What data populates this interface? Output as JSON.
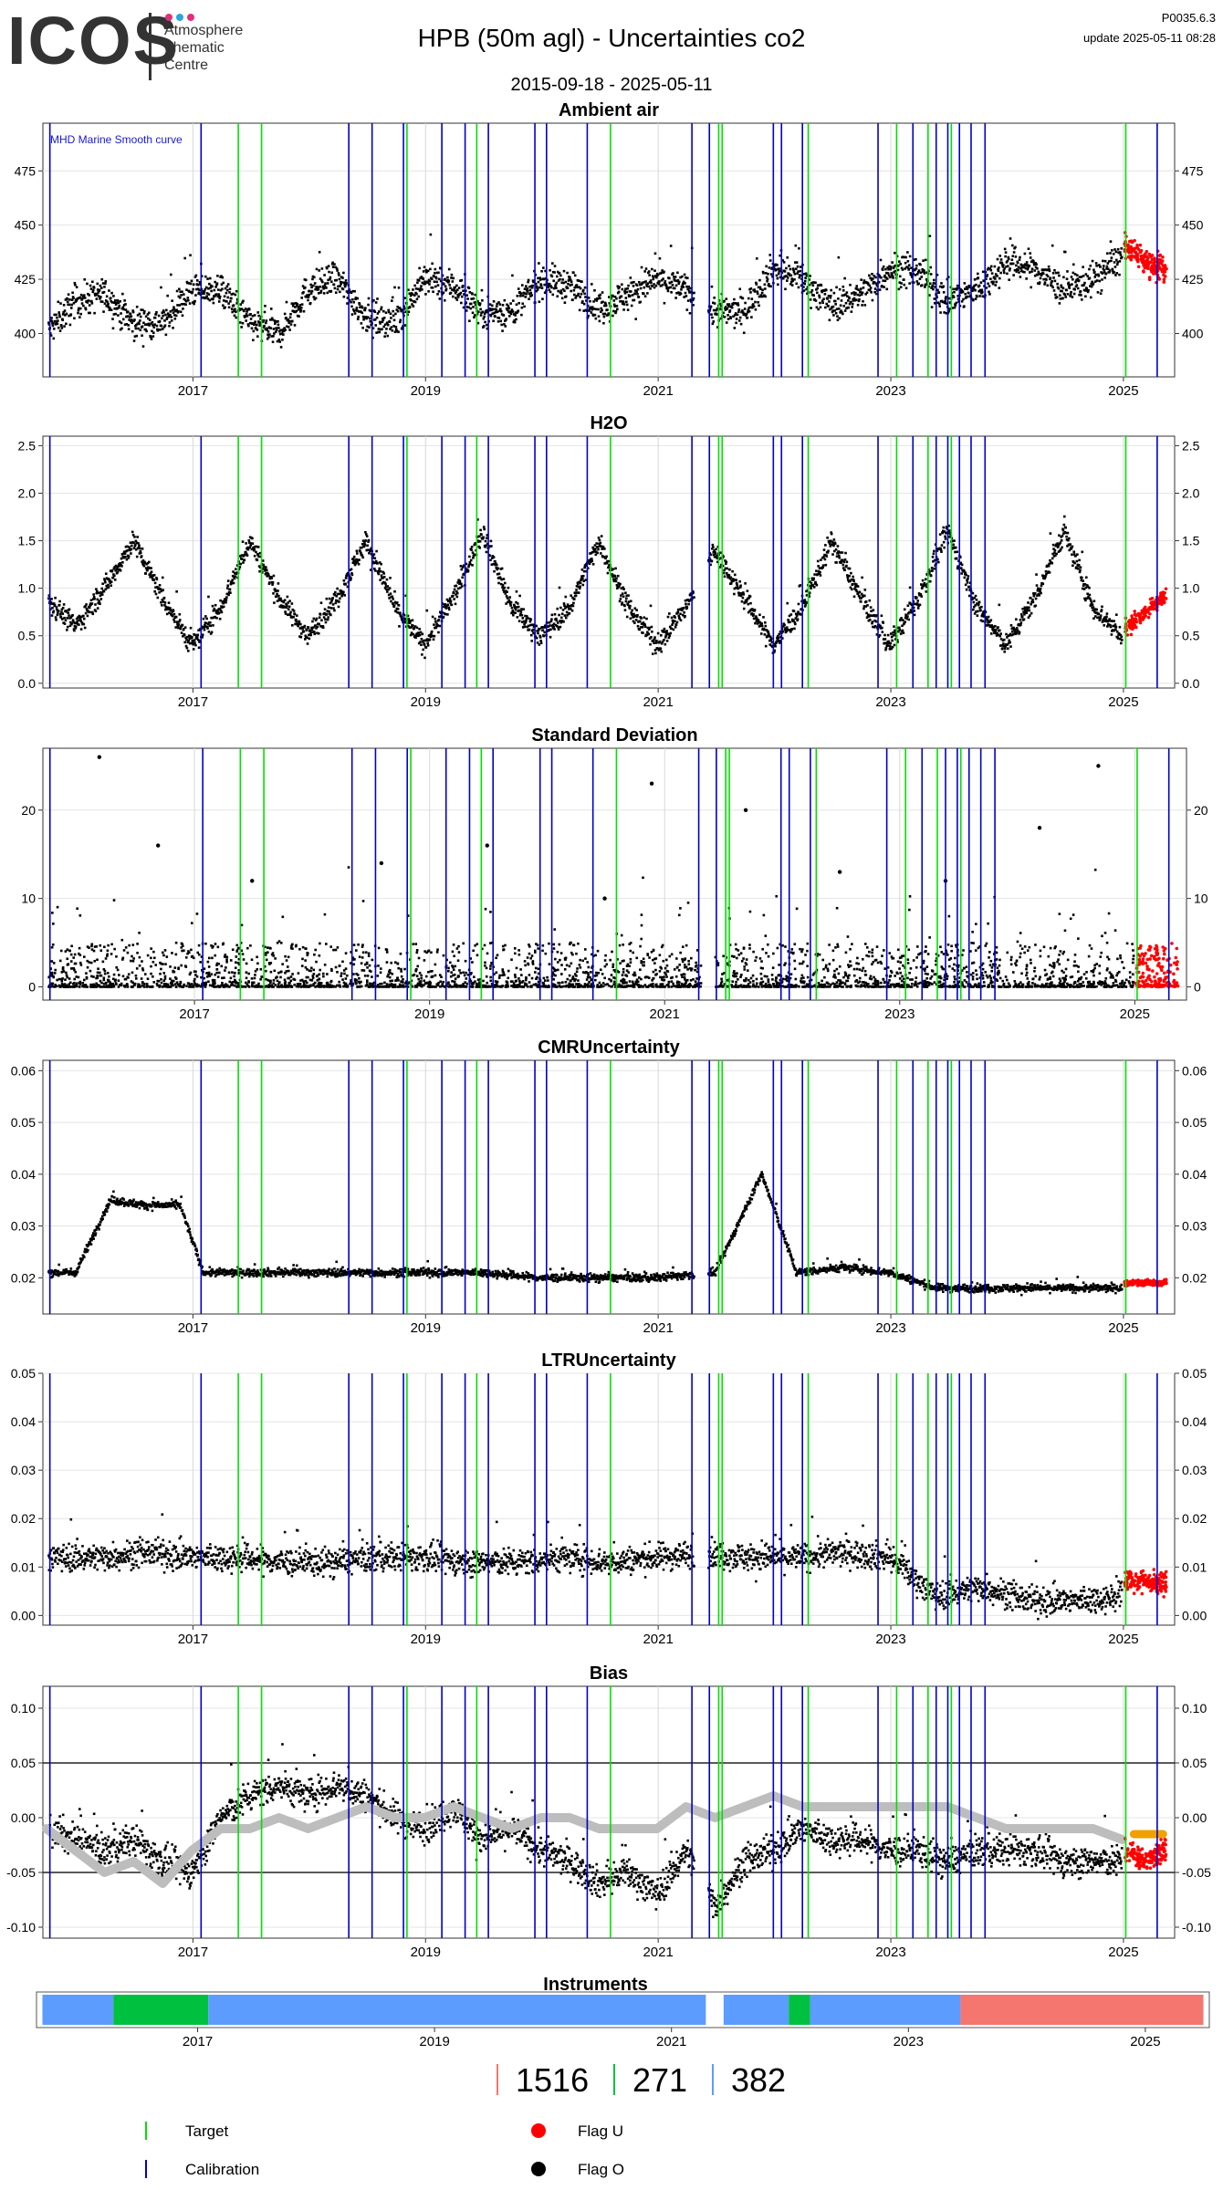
{
  "header": {
    "logo_text": "ICOS",
    "logo_sub": [
      "Atmosphere",
      "Thematic",
      "Centre"
    ],
    "title": "HPB  (50m agl) - Uncertainties co2",
    "date_range": "2015-09-18 - 2025-05-11",
    "version": "P0035.6.3",
    "update": "update  2025-05-11 08:28"
  },
  "colors": {
    "target": "#00e000",
    "calibration": "#0000c8",
    "flag_u": "#ff0000",
    "flag_o": "#000000",
    "smooth": "#bdbdbd",
    "bias_orange": "#f0a000",
    "instrument_blue": "#5c9cff",
    "instrument_green": "#00c040",
    "instrument_red": "#f4766e"
  },
  "chart_data": [
    {
      "type": "scatter",
      "title": "Ambient air",
      "annotation": "MHD Marine Smooth curve",
      "yticks": [
        400,
        425,
        450,
        475
      ],
      "ylim": [
        380,
        497
      ],
      "xticks": [
        "2017",
        "2019",
        "2021",
        "2023",
        "2025"
      ],
      "series": [
        {
          "name": "Flag O",
          "x": [
            2015.75,
            2016.0,
            2016.25,
            2016.5,
            2016.75,
            2017.0,
            2017.25,
            2017.5,
            2017.75,
            2018.0,
            2018.25,
            2018.5,
            2018.75,
            2019.0,
            2019.25,
            2019.5,
            2019.75,
            2020.0,
            2020.25,
            2020.5,
            2020.75,
            2021.0,
            2021.25,
            2021.5,
            2021.75,
            2022.0,
            2022.25,
            2022.5,
            2022.75,
            2023.0,
            2023.25,
            2023.5,
            2023.75,
            2024.0,
            2024.25,
            2024.5,
            2024.75,
            2025.0
          ],
          "y": [
            400,
            415,
            418,
            405,
            405,
            420,
            420,
            405,
            400,
            420,
            425,
            408,
            405,
            425,
            422,
            410,
            410,
            425,
            422,
            412,
            418,
            425,
            420,
            410,
            410,
            430,
            425,
            413,
            418,
            430,
            428,
            415,
            420,
            433,
            430,
            420,
            425,
            436
          ]
        },
        {
          "name": "Flag U",
          "x": [
            2025.0,
            2025.1,
            2025.2,
            2025.3
          ],
          "y": [
            440,
            438,
            433,
            430
          ]
        }
      ]
    },
    {
      "type": "scatter",
      "title": "H2O",
      "yticks": [
        0.0,
        0.5,
        1.0,
        1.5,
        2.0,
        2.5
      ],
      "ylim": [
        -0.05,
        2.6
      ],
      "xticks": [
        "2017",
        "2019",
        "2021",
        "2023",
        "2025"
      ],
      "series": [
        {
          "name": "Flag O",
          "x": [
            2015.75,
            2016.0,
            2016.25,
            2016.5,
            2016.75,
            2017.0,
            2017.25,
            2017.5,
            2017.75,
            2018.0,
            2018.25,
            2018.5,
            2018.75,
            2019.0,
            2019.25,
            2019.5,
            2019.75,
            2020.0,
            2020.25,
            2020.5,
            2020.75,
            2021.0,
            2021.25,
            2021.5,
            2021.75,
            2022.0,
            2022.25,
            2022.5,
            2022.75,
            2023.0,
            2023.25,
            2023.5,
            2023.75,
            2024.0,
            2024.25,
            2024.5,
            2024.75,
            2025.0
          ],
          "y": [
            0.9,
            0.6,
            1.0,
            1.5,
            0.9,
            0.4,
            0.8,
            1.5,
            0.9,
            0.5,
            0.9,
            1.5,
            0.8,
            0.4,
            0.9,
            1.6,
            0.8,
            0.5,
            0.8,
            1.5,
            0.8,
            0.4,
            0.8,
            1.4,
            0.9,
            0.4,
            0.8,
            1.5,
            0.9,
            0.4,
            0.9,
            1.6,
            0.8,
            0.4,
            0.9,
            1.6,
            0.8,
            0.5
          ]
        },
        {
          "name": "Flag U",
          "x": [
            2025.05,
            2025.15,
            2025.25,
            2025.35
          ],
          "y": [
            0.6,
            0.7,
            0.8,
            0.9
          ]
        }
      ]
    },
    {
      "type": "scatter",
      "title": "Standard Deviation",
      "yticks": [
        0,
        10,
        20
      ],
      "ylim": [
        -1.5,
        27
      ],
      "xticks": [
        "2017",
        "2019",
        "2021",
        "2023",
        "2025"
      ],
      "series": [
        {
          "name": "Flag O",
          "x": [
            2016.2,
            2016.7,
            2017.5,
            2018.6,
            2019.5,
            2020.5,
            2020.9,
            2021.7,
            2022.5,
            2023.4,
            2024.2,
            2024.7
          ],
          "y": [
            26,
            16,
            12,
            14,
            16,
            10,
            23,
            20,
            13,
            12,
            18,
            25
          ]
        },
        {
          "name": "Flag U",
          "x": [
            2025.1,
            2025.2
          ],
          "y": [
            3,
            5
          ]
        }
      ]
    },
    {
      "type": "scatter",
      "title": "CMRUncertainty",
      "yticks": [
        0.02,
        0.03,
        0.04,
        0.05,
        0.06
      ],
      "ylim": [
        0.013,
        0.062
      ],
      "xticks": [
        "2017",
        "2019",
        "2021",
        "2023",
        "2025"
      ],
      "series": [
        {
          "name": "Flag O",
          "x": [
            2015.8,
            2016.0,
            2016.3,
            2016.6,
            2016.9,
            2017.1,
            2017.5,
            2018.0,
            2018.5,
            2019.0,
            2019.5,
            2020.0,
            2020.5,
            2021.0,
            2021.5,
            2021.9,
            2022.2,
            2022.6,
            2023.0,
            2023.4,
            2023.8,
            2024.3,
            2024.8,
            2025.0
          ],
          "y": [
            0.021,
            0.021,
            0.035,
            0.034,
            0.034,
            0.021,
            0.021,
            0.021,
            0.021,
            0.021,
            0.021,
            0.02,
            0.02,
            0.02,
            0.021,
            0.04,
            0.021,
            0.022,
            0.021,
            0.018,
            0.018,
            0.018,
            0.018,
            0.018
          ]
        },
        {
          "name": "Flag U",
          "x": [
            2025.05,
            2025.2,
            2025.35
          ],
          "y": [
            0.019,
            0.019,
            0.019
          ]
        }
      ]
    },
    {
      "type": "scatter",
      "title": "LTRUncertainty",
      "yticks": [
        0.0,
        0.01,
        0.02,
        0.03,
        0.04,
        0.05
      ],
      "ylim": [
        -0.002,
        0.05
      ],
      "xticks": [
        "2017",
        "2019",
        "2021",
        "2023",
        "2025"
      ],
      "series": [
        {
          "name": "Flag O",
          "x": [
            2015.8,
            2016.2,
            2016.6,
            2017.0,
            2017.4,
            2017.8,
            2018.2,
            2018.6,
            2019.0,
            2019.4,
            2019.8,
            2020.2,
            2020.6,
            2021.0,
            2021.4,
            2021.8,
            2022.2,
            2022.6,
            2023.0,
            2023.4,
            2023.8,
            2024.2,
            2024.6,
            2025.0
          ],
          "y": [
            0.012,
            0.012,
            0.013,
            0.012,
            0.012,
            0.011,
            0.011,
            0.012,
            0.012,
            0.011,
            0.011,
            0.012,
            0.011,
            0.012,
            0.013,
            0.012,
            0.012,
            0.013,
            0.012,
            0.004,
            0.006,
            0.003,
            0.003,
            0.004
          ]
        },
        {
          "name": "Flag U",
          "x": [
            2025.1,
            2025.2,
            2025.3
          ],
          "y": [
            0.007,
            0.007,
            0.007
          ]
        }
      ]
    },
    {
      "type": "line",
      "title": "Bias",
      "yticks": [
        -0.1,
        -0.05,
        0.0,
        0.05,
        0.1
      ],
      "ylim": [
        -0.11,
        0.12
      ],
      "xticks": [
        "2017",
        "2019",
        "2021",
        "2023",
        "2025"
      ],
      "series": [
        {
          "name": "Flag O",
          "x": [
            2015.75,
            2016.0,
            2016.25,
            2016.5,
            2016.75,
            2017.0,
            2017.25,
            2017.5,
            2017.75,
            2018.0,
            2018.25,
            2018.5,
            2018.75,
            2019.0,
            2019.25,
            2019.5,
            2019.75,
            2020.0,
            2020.25,
            2020.5,
            2020.75,
            2021.0,
            2021.25,
            2021.5,
            2021.75,
            2022.0,
            2022.25,
            2022.5,
            2022.75,
            2023.0,
            2023.25,
            2023.5,
            2023.75,
            2024.0,
            2024.25,
            2024.5,
            2024.75,
            2025.0
          ],
          "y": [
            -0.01,
            -0.02,
            -0.03,
            -0.02,
            -0.04,
            -0.05,
            0.0,
            0.02,
            0.03,
            0.02,
            0.03,
            0.02,
            0.0,
            -0.01,
            0.01,
            -0.02,
            -0.01,
            -0.03,
            -0.04,
            -0.06,
            -0.05,
            -0.07,
            -0.03,
            -0.08,
            -0.04,
            -0.03,
            -0.01,
            -0.02,
            -0.02,
            -0.03,
            -0.03,
            -0.04,
            -0.03,
            -0.03,
            -0.03,
            -0.04,
            -0.04,
            -0.04
          ]
        },
        {
          "name": "Smooth",
          "x": [
            2015.75,
            2016.0,
            2016.25,
            2016.5,
            2016.75,
            2017.0,
            2017.25,
            2017.5,
            2017.75,
            2018.0,
            2018.25,
            2018.5,
            2018.75,
            2019.0,
            2019.25,
            2019.5,
            2019.75,
            2020.0,
            2020.25,
            2020.5,
            2020.75,
            2021.0,
            2021.25,
            2021.5,
            2021.75,
            2022.0,
            2022.25,
            2022.5,
            2022.75,
            2023.0,
            2023.25,
            2023.5,
            2023.75,
            2024.0,
            2024.25,
            2024.5,
            2024.75,
            2025.0
          ],
          "y": [
            -0.01,
            -0.03,
            -0.05,
            -0.04,
            -0.06,
            -0.03,
            -0.01,
            -0.01,
            0.0,
            -0.01,
            0.0,
            0.01,
            0.0,
            0.0,
            0.01,
            0.0,
            -0.01,
            0.0,
            0.0,
            -0.01,
            -0.01,
            -0.01,
            0.01,
            0.0,
            0.01,
            0.02,
            0.01,
            0.01,
            0.01,
            0.01,
            0.01,
            0.01,
            0.0,
            -0.01,
            -0.01,
            -0.01,
            -0.01,
            -0.02
          ]
        },
        {
          "name": "Flag U",
          "x": [
            2025.05,
            2025.2,
            2025.35
          ],
          "y": [
            -0.03,
            -0.04,
            -0.03
          ]
        }
      ]
    }
  ],
  "target_lines": [
    2017.4,
    2017.6,
    2018.85,
    2019.45,
    2020.6,
    2021.53,
    2021.56,
    2022.3,
    2023.06,
    2023.33,
    2023.53,
    2025.03
  ],
  "calibration_lines": [
    2015.78,
    2017.08,
    2018.35,
    2018.55,
    2018.82,
    2019.15,
    2019.35,
    2019.55,
    2019.95,
    2020.05,
    2020.4,
    2021.3,
    2021.45,
    2022.0,
    2022.07,
    2022.25,
    2022.9,
    2023.2,
    2023.4,
    2023.5,
    2023.6,
    2023.7,
    2023.82,
    2025.3
  ],
  "instruments": {
    "title": "Instruments",
    "xticks": [
      "2017",
      "2019",
      "2021",
      "2023",
      "2025"
    ],
    "segments": [
      {
        "start": 2015.7,
        "end": 2016.3,
        "color": "#5c9cff"
      },
      {
        "start": 2016.3,
        "end": 2017.1,
        "color": "#00c040"
      },
      {
        "start": 2017.1,
        "end": 2021.3,
        "color": "#5c9cff"
      },
      {
        "start": 2021.45,
        "end": 2022.0,
        "color": "#5c9cff"
      },
      {
        "start": 2022.0,
        "end": 2022.18,
        "color": "#00c040"
      },
      {
        "start": 2022.18,
        "end": 2023.45,
        "color": "#5c9cff"
      },
      {
        "start": 2023.45,
        "end": 2025.5,
        "color": "#f4766e"
      }
    ],
    "counts": [
      {
        "value": "1516",
        "color": "#f4766e"
      },
      {
        "value": "271",
        "color": "#00c040"
      },
      {
        "value": "382",
        "color": "#5c9cff"
      }
    ]
  },
  "legend": [
    {
      "label": "Target",
      "kind": "line",
      "color": "#00e000"
    },
    {
      "label": "Calibration",
      "kind": "line",
      "color": "#0000c8"
    },
    {
      "label": "Flag U",
      "kind": "dot",
      "color": "#ff0000"
    },
    {
      "label": "Flag O",
      "kind": "dot",
      "color": "#000000"
    }
  ]
}
